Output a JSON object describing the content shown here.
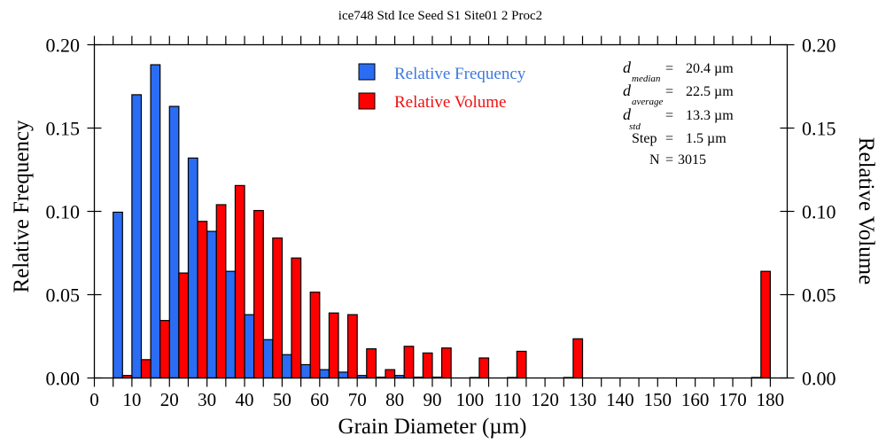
{
  "chart_data": {
    "type": "bar",
    "title": "ice748 Std Ice Seed S1 Site01 2 Proc2",
    "xlabel": "Grain Diameter (µm)",
    "ylabel": "Relative Frequency",
    "y2label": "Relative Volume",
    "xlim": [
      0,
      184.5
    ],
    "ylim": [
      0,
      0.2
    ],
    "y2lim": [
      0,
      0.2
    ],
    "xticks": [
      0,
      10,
      20,
      30,
      40,
      50,
      60,
      70,
      80,
      90,
      100,
      110,
      120,
      130,
      140,
      150,
      160,
      170,
      180
    ],
    "xtick_labels": [
      "0",
      "10",
      "20",
      "30",
      "40",
      "50",
      "60",
      "70",
      "80",
      "90",
      "100",
      "110",
      "120",
      "130",
      "140",
      "150",
      "160",
      "170",
      "180"
    ],
    "yticks": [
      0.0,
      0.05,
      0.1,
      0.15,
      0.2
    ],
    "ytick_labels": [
      "0.00",
      "0.05",
      "0.10",
      "0.15",
      "0.20"
    ],
    "y2tick_labels": [
      "0.00",
      "0.05",
      "0.10",
      "0.15",
      "0.20"
    ],
    "minor_xtick_step": 5,
    "grid": false,
    "legend_position": "top-center",
    "bin_width": 5,
    "bins_start": [
      5,
      10,
      15,
      20,
      25,
      30,
      35,
      40,
      45,
      50,
      55,
      60,
      65,
      70,
      75,
      80,
      85,
      90,
      100,
      110,
      125,
      175
    ],
    "series": [
      {
        "name": "Relative Frequency",
        "color": "#2a6df4",
        "axis": "left",
        "values": [
          0.0995,
          0.17,
          0.188,
          0.163,
          0.132,
          0.088,
          0.064,
          0.038,
          0.023,
          0.014,
          0.008,
          0.005,
          0.0035,
          0.0015,
          0.0005,
          0.0015,
          0.0005,
          0.0005,
          0.0003,
          0.0003,
          0.0003,
          0.0003
        ]
      },
      {
        "name": "Relative Volume",
        "color": "#ff0000",
        "axis": "right",
        "values": [
          0.0015,
          0.011,
          0.0345,
          0.063,
          0.094,
          0.104,
          0.1155,
          0.1005,
          0.084,
          0.072,
          0.0515,
          0.039,
          0.038,
          0.0175,
          0.005,
          0.019,
          0.015,
          0.018,
          0.012,
          0.016,
          0.0235,
          0.064
        ]
      }
    ],
    "annotations": [
      {
        "symbol": "d",
        "subscript": "median",
        "value": "20.4 µm"
      },
      {
        "symbol": "d",
        "subscript": "average",
        "value": "22.5 µm"
      },
      {
        "symbol": "d",
        "subscript": "std",
        "value": "13.3 µm"
      },
      {
        "symbol": "Step",
        "subscript": "",
        "value": "1.5 µm"
      },
      {
        "symbol": "N",
        "subscript": "",
        "value": "3015"
      }
    ]
  }
}
